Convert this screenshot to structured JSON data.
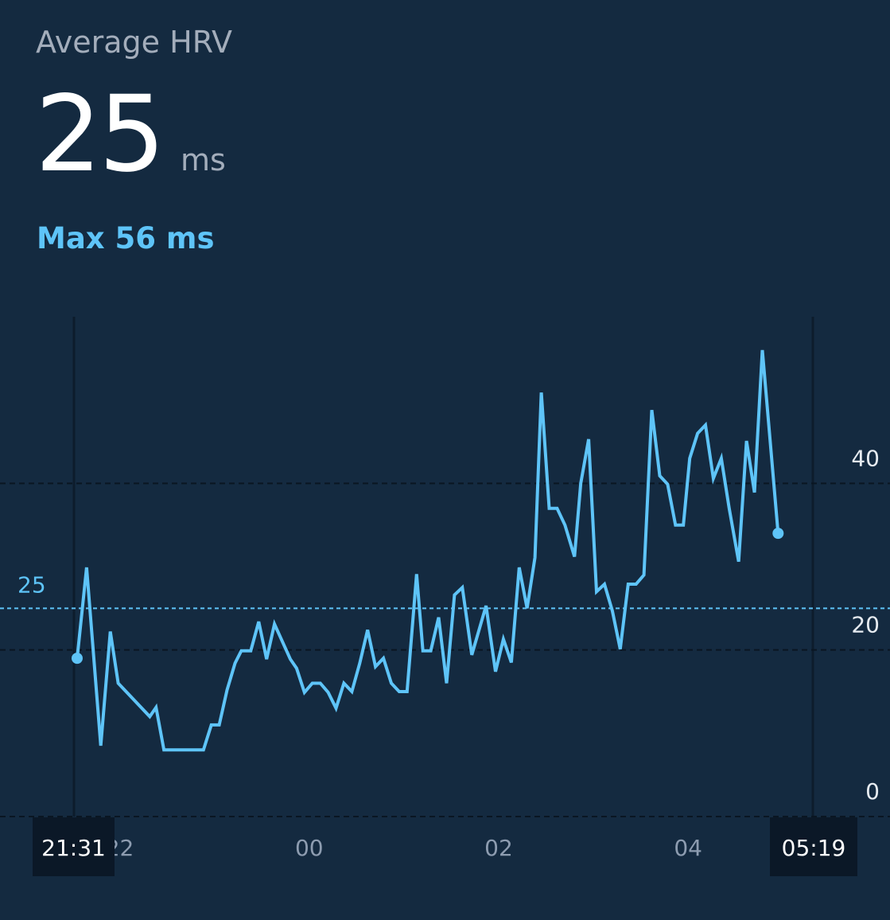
{
  "chart_data": {
    "type": "line",
    "title": "Average HRV",
    "average": 25,
    "unit": "ms",
    "max_label": "Max 56 ms",
    "color": "#5ec4f8",
    "x": [
      "21:33",
      "21:39",
      "21:48",
      "21:54",
      "21:59",
      "22:19",
      "22:23",
      "22:28",
      "22:53",
      "22:58",
      "23:03",
      "23:08",
      "23:13",
      "23:17",
      "23:23",
      "23:28",
      "23:33",
      "23:38",
      "23:48",
      "23:52",
      "23:57",
      "00:02",
      "00:07",
      "00:12",
      "00:17",
      "00:22",
      "00:27",
      "00:32",
      "00:37",
      "00:42",
      "00:47",
      "00:52",
      "00:57",
      "01:02",
      "01:08",
      "01:12",
      "01:17",
      "01:22",
      "01:27",
      "01:32",
      "01:37",
      "01:43",
      "01:52",
      "01:58",
      "02:03",
      "02:08",
      "02:13",
      "02:18",
      "02:23",
      "02:27",
      "02:32",
      "02:37",
      "02:42",
      "02:48",
      "02:52",
      "02:57",
      "03:02",
      "03:07",
      "03:12",
      "03:17",
      "03:22",
      "03:27",
      "03:32",
      "03:37",
      "03:42",
      "03:47",
      "03:52",
      "03:57",
      "04:01",
      "04:06",
      "04:11",
      "04:16",
      "04:21",
      "04:26",
      "04:32",
      "04:37",
      "04:42",
      "04:47",
      "04:57"
    ],
    "values": [
      19,
      29.9,
      8.5,
      22.2,
      16,
      12,
      13.1,
      8,
      8,
      11,
      11,
      15.2,
      18.4,
      19.9,
      19.9,
      23.4,
      18.9,
      23.1,
      18.9,
      17.8,
      14.9,
      16,
      16,
      14.9,
      13,
      16,
      15,
      18.4,
      22.4,
      18,
      19,
      16,
      15,
      15,
      29.1,
      19.9,
      19.9,
      23.9,
      16,
      26.6,
      27.5,
      19.4,
      25.3,
      17.4,
      21.3,
      18.5,
      29.9,
      25,
      31.1,
      50.9,
      37,
      37,
      35,
      31.2,
      40,
      45.3,
      27,
      27.9,
      24.7,
      20.1,
      27.9,
      27.9,
      29,
      48.8,
      40.9,
      39.9,
      35,
      35,
      43,
      46,
      47,
      40.6,
      43,
      37,
      30.6,
      45.1,
      38.9,
      56,
      34
    ],
    "xlim": [
      "21:31",
      "05:19"
    ],
    "xticks": [
      {
        "value": "22:00",
        "label": "22"
      },
      {
        "value": "00:00",
        "label": "00"
      },
      {
        "value": "02:00",
        "label": "02"
      },
      {
        "value": "04:00",
        "label": "04"
      }
    ],
    "ylim": [
      0,
      60
    ],
    "yticks": [
      0,
      20,
      40
    ],
    "grid": true
  }
}
